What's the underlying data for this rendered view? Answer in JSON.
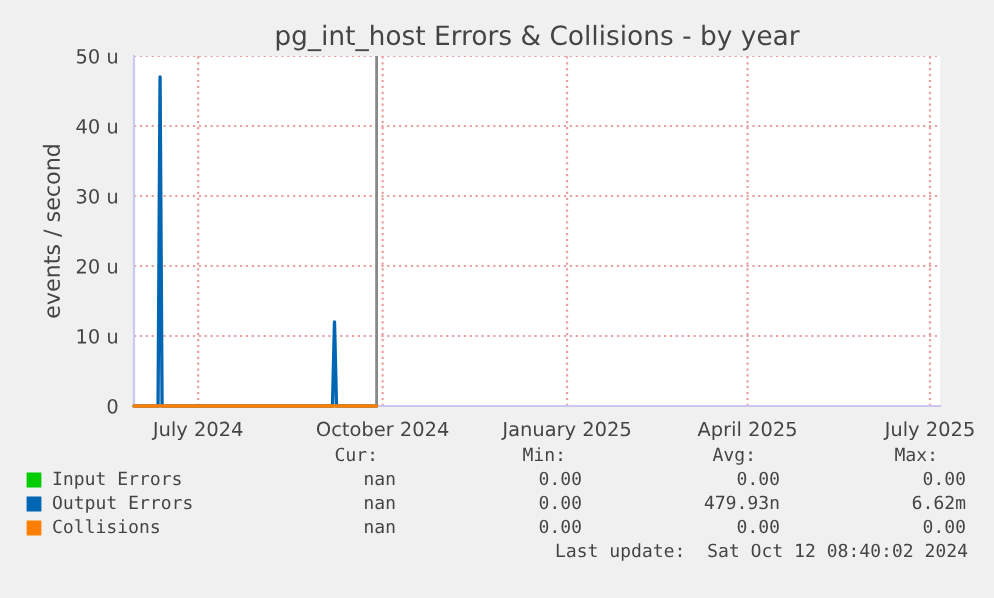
{
  "chart_data": {
    "type": "line",
    "title": "pg_int_host Errors & Collisions - by year",
    "ylabel": "events / second",
    "xlim": [
      "2024-05-30",
      "2025-07-06"
    ],
    "xticks": [
      {
        "value": "2024-07-01",
        "label": "July 2024"
      },
      {
        "value": "2024-10-01",
        "label": "October 2024"
      },
      {
        "value": "2025-01-01",
        "label": "January 2025"
      },
      {
        "value": "2025-04-01",
        "label": "April 2025"
      },
      {
        "value": "2025-07-01",
        "label": "July 2025"
      }
    ],
    "ylim": [
      0,
      50
    ],
    "yticks": [
      0,
      {
        "value": 10,
        "label": "10 u"
      },
      {
        "value": 20,
        "label": "20 u"
      },
      {
        "value": 30,
        "label": "30 u"
      },
      {
        "value": 40,
        "label": "40 u"
      },
      {
        "value": 50,
        "label": "50 u"
      }
    ],
    "series": [
      {
        "name": "Input Errors",
        "color": "#00cc00"
      },
      {
        "name": "Output Errors",
        "color": "#0066b3",
        "x": [
          "2024-05-30",
          "2024-06-11",
          "2024-06-12",
          "2024-06-13",
          "2024-09-06",
          "2024-09-07",
          "2024-09-08",
          "2024-09-28"
        ],
        "values": [
          0,
          0,
          47,
          0,
          0,
          12,
          0,
          0
        ]
      },
      {
        "name": "Collisions",
        "color": "#ff8000",
        "x": [
          "2024-05-30",
          "2024-09-28"
        ],
        "values": [
          0,
          0
        ]
      }
    ],
    "ref_lines": [
      {
        "axis": "x",
        "value": "2024-09-28",
        "color": "#888888"
      }
    ],
    "grid": true,
    "legend": "bottom",
    "annotations": [
      "Cur:",
      "Min:",
      "Avg:",
      "Max:",
      "nan",
      "0.00",
      "0.00",
      "0.00",
      "nan",
      "0.00",
      "479.93n",
      "6.62m",
      "nan",
      "0.00",
      "0.00",
      "0.00",
      "Last update:  Sat Oct 12 08:40:02 2024"
    ]
  }
}
